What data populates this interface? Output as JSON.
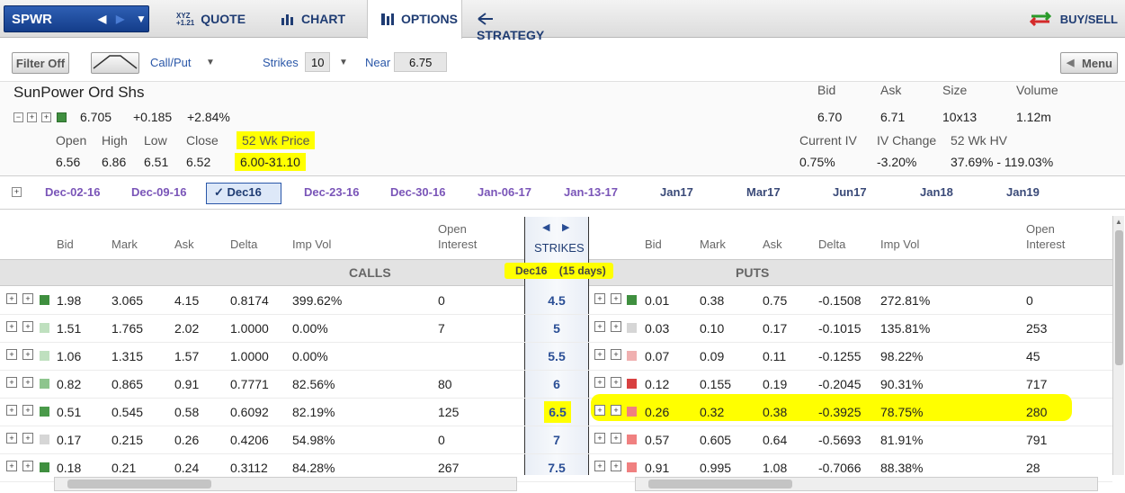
{
  "nav": {
    "symbol": "SPWR",
    "tabs": [
      {
        "label": "QUOTE",
        "ic": "XYZ"
      },
      {
        "label": "CHART"
      },
      {
        "label": "OPTIONS"
      },
      {
        "label": "STRATEGY"
      }
    ],
    "buysell": "BUY/SELL"
  },
  "toolbar": {
    "filter": "Filter Off",
    "callput": "Call/Put",
    "strikes_label": "Strikes",
    "strikes_value": "10",
    "near_label": "Near",
    "near_value": "6.75",
    "menu": "Menu"
  },
  "quote": {
    "name": "SunPower Ord Shs",
    "last": "6.705",
    "change": "+0.185",
    "pct": "+2.84%",
    "open_l": "Open",
    "high_l": "High",
    "low_l": "Low",
    "close_l": "Close",
    "wk_l": "52 Wk Price",
    "open": "6.56",
    "high": "6.86",
    "low": "6.51",
    "close": "6.52",
    "wk": "6.00-31.10",
    "bid_l": "Bid",
    "ask_l": "Ask",
    "size_l": "Size",
    "vol_l": "Volume",
    "bid": "6.70",
    "ask": "6.71",
    "size": "10x13",
    "vol": "1.12m",
    "civ_l": "Current IV",
    "ivc_l": "IV Change",
    "hv_l": "52 Wk HV",
    "civ": "0.75%",
    "ivc": "-3.20%",
    "hv": "37.69% - 119.03%"
  },
  "expirations": [
    "Dec-02-16",
    "Dec-09-16",
    "Dec16",
    "Dec-23-16",
    "Dec-30-16",
    "Jan-06-17",
    "Jan-13-17",
    "Jan17",
    "Mar17",
    "Jun17",
    "Jan18",
    "Jan19"
  ],
  "headers": {
    "bid": "Bid",
    "mark": "Mark",
    "ask": "Ask",
    "delta": "Delta",
    "impvol": "Imp Vol",
    "oi1": "Open",
    "oi2": "Interest",
    "strikes": "STRIKES",
    "calls": "CALLS",
    "puts": "PUTS",
    "exp_label": "Dec16    (15 days)"
  },
  "rows": [
    {
      "cbid": "1.98",
      "cmark": "3.065",
      "cask": "4.15",
      "cdelta": "0.8174",
      "civ": "399.62%",
      "coi": "0",
      "strike": "4.5",
      "pbid": "0.01",
      "pmark": "0.38",
      "pask": "0.75",
      "pdelta": "-0.1508",
      "piv": "272.81%",
      "poi": "0"
    },
    {
      "cbid": "1.51",
      "cmark": "1.765",
      "cask": "2.02",
      "cdelta": "1.0000",
      "civ": "0.00%",
      "coi": "7",
      "strike": "5",
      "pbid": "0.03",
      "pmark": "0.10",
      "pask": "0.17",
      "pdelta": "-0.1015",
      "piv": "135.81%",
      "poi": "253"
    },
    {
      "cbid": "1.06",
      "cmark": "1.315",
      "cask": "1.57",
      "cdelta": "1.0000",
      "civ": "0.00%",
      "coi": "",
      "strike": "5.5",
      "pbid": "0.07",
      "pmark": "0.09",
      "pask": "0.11",
      "pdelta": "-0.1255",
      "piv": "98.22%",
      "poi": "45"
    },
    {
      "cbid": "0.82",
      "cmark": "0.865",
      "cask": "0.91",
      "cdelta": "0.7771",
      "civ": "82.56%",
      "coi": "80",
      "strike": "6",
      "pbid": "0.12",
      "pmark": "0.155",
      "pask": "0.19",
      "pdelta": "-0.2045",
      "piv": "90.31%",
      "poi": "717"
    },
    {
      "cbid": "0.51",
      "cmark": "0.545",
      "cask": "0.58",
      "cdelta": "0.6092",
      "civ": "82.19%",
      "coi": "125",
      "strike": "6.5",
      "pbid": "0.26",
      "pmark": "0.32",
      "pask": "0.38",
      "pdelta": "-0.3925",
      "piv": "78.75%",
      "poi": "280"
    },
    {
      "cbid": "0.17",
      "cmark": "0.215",
      "cask": "0.26",
      "cdelta": "0.4206",
      "civ": "54.98%",
      "coi": "0",
      "strike": "7",
      "pbid": "0.57",
      "pmark": "0.605",
      "pask": "0.64",
      "pdelta": "-0.5693",
      "piv": "81.91%",
      "poi": "791"
    },
    {
      "cbid": "0.18",
      "cmark": "0.21",
      "cask": "0.24",
      "cdelta": "0.3112",
      "civ": "84.28%",
      "coi": "267",
      "strike": "7.5",
      "pbid": "0.91",
      "pmark": "0.995",
      "pask": "1.08",
      "pdelta": "-0.7066",
      "piv": "88.38%",
      "poi": "28"
    }
  ],
  "colors": {
    "call_dots": [
      "#3f8f3f",
      "#bfe0bf",
      "#bfe0bf",
      "#8ec58e",
      "#4a9a4a",
      "#d6d6d6",
      "#3f8f3f"
    ],
    "put_dots": [
      "#3f8f3f",
      "#d6d6d6",
      "#f0b0b0",
      "#d84040",
      "#f08080",
      "#f08080",
      "#f08080"
    ]
  }
}
